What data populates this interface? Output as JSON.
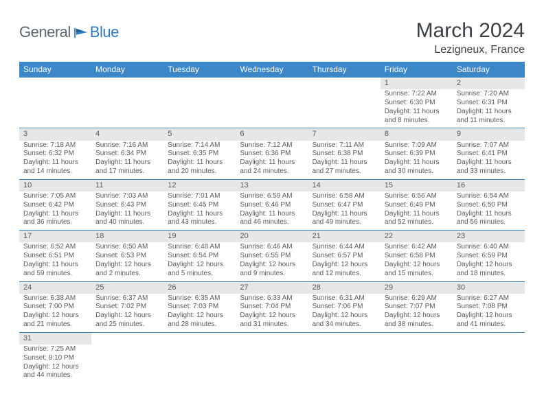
{
  "logo": {
    "general": "General",
    "blue": "Blue"
  },
  "title": "March 2024",
  "location": "Lezigneux, France",
  "colors": {
    "header_bg": "#3b87c8",
    "header_text": "#ffffff",
    "daynum_bg": "#e6e7e8",
    "body_text": "#58595b",
    "row_divider": "#3b87c8",
    "logo_gray": "#5b6670",
    "logo_blue": "#2f7ac0"
  },
  "typography": {
    "title_fontsize": 30,
    "location_fontsize": 16,
    "dayname_fontsize": 12,
    "daynum_fontsize": 11,
    "body_fontsize": 10
  },
  "daynames": [
    "Sunday",
    "Monday",
    "Tuesday",
    "Wednesday",
    "Thursday",
    "Friday",
    "Saturday"
  ],
  "days": [
    {
      "n": "",
      "sr": "",
      "ss": "",
      "dl1": "",
      "dl2": ""
    },
    {
      "n": "",
      "sr": "",
      "ss": "",
      "dl1": "",
      "dl2": ""
    },
    {
      "n": "",
      "sr": "",
      "ss": "",
      "dl1": "",
      "dl2": ""
    },
    {
      "n": "",
      "sr": "",
      "ss": "",
      "dl1": "",
      "dl2": ""
    },
    {
      "n": "",
      "sr": "",
      "ss": "",
      "dl1": "",
      "dl2": ""
    },
    {
      "n": "1",
      "sr": "Sunrise: 7:22 AM",
      "ss": "Sunset: 6:30 PM",
      "dl1": "Daylight: 11 hours",
      "dl2": "and 8 minutes."
    },
    {
      "n": "2",
      "sr": "Sunrise: 7:20 AM",
      "ss": "Sunset: 6:31 PM",
      "dl1": "Daylight: 11 hours",
      "dl2": "and 11 minutes."
    },
    {
      "n": "3",
      "sr": "Sunrise: 7:18 AM",
      "ss": "Sunset: 6:32 PM",
      "dl1": "Daylight: 11 hours",
      "dl2": "and 14 minutes."
    },
    {
      "n": "4",
      "sr": "Sunrise: 7:16 AM",
      "ss": "Sunset: 6:34 PM",
      "dl1": "Daylight: 11 hours",
      "dl2": "and 17 minutes."
    },
    {
      "n": "5",
      "sr": "Sunrise: 7:14 AM",
      "ss": "Sunset: 6:35 PM",
      "dl1": "Daylight: 11 hours",
      "dl2": "and 20 minutes."
    },
    {
      "n": "6",
      "sr": "Sunrise: 7:12 AM",
      "ss": "Sunset: 6:36 PM",
      "dl1": "Daylight: 11 hours",
      "dl2": "and 24 minutes."
    },
    {
      "n": "7",
      "sr": "Sunrise: 7:11 AM",
      "ss": "Sunset: 6:38 PM",
      "dl1": "Daylight: 11 hours",
      "dl2": "and 27 minutes."
    },
    {
      "n": "8",
      "sr": "Sunrise: 7:09 AM",
      "ss": "Sunset: 6:39 PM",
      "dl1": "Daylight: 11 hours",
      "dl2": "and 30 minutes."
    },
    {
      "n": "9",
      "sr": "Sunrise: 7:07 AM",
      "ss": "Sunset: 6:41 PM",
      "dl1": "Daylight: 11 hours",
      "dl2": "and 33 minutes."
    },
    {
      "n": "10",
      "sr": "Sunrise: 7:05 AM",
      "ss": "Sunset: 6:42 PM",
      "dl1": "Daylight: 11 hours",
      "dl2": "and 36 minutes."
    },
    {
      "n": "11",
      "sr": "Sunrise: 7:03 AM",
      "ss": "Sunset: 6:43 PM",
      "dl1": "Daylight: 11 hours",
      "dl2": "and 40 minutes."
    },
    {
      "n": "12",
      "sr": "Sunrise: 7:01 AM",
      "ss": "Sunset: 6:45 PM",
      "dl1": "Daylight: 11 hours",
      "dl2": "and 43 minutes."
    },
    {
      "n": "13",
      "sr": "Sunrise: 6:59 AM",
      "ss": "Sunset: 6:46 PM",
      "dl1": "Daylight: 11 hours",
      "dl2": "and 46 minutes."
    },
    {
      "n": "14",
      "sr": "Sunrise: 6:58 AM",
      "ss": "Sunset: 6:47 PM",
      "dl1": "Daylight: 11 hours",
      "dl2": "and 49 minutes."
    },
    {
      "n": "15",
      "sr": "Sunrise: 6:56 AM",
      "ss": "Sunset: 6:49 PM",
      "dl1": "Daylight: 11 hours",
      "dl2": "and 52 minutes."
    },
    {
      "n": "16",
      "sr": "Sunrise: 6:54 AM",
      "ss": "Sunset: 6:50 PM",
      "dl1": "Daylight: 11 hours",
      "dl2": "and 56 minutes."
    },
    {
      "n": "17",
      "sr": "Sunrise: 6:52 AM",
      "ss": "Sunset: 6:51 PM",
      "dl1": "Daylight: 11 hours",
      "dl2": "and 59 minutes."
    },
    {
      "n": "18",
      "sr": "Sunrise: 6:50 AM",
      "ss": "Sunset: 6:53 PM",
      "dl1": "Daylight: 12 hours",
      "dl2": "and 2 minutes."
    },
    {
      "n": "19",
      "sr": "Sunrise: 6:48 AM",
      "ss": "Sunset: 6:54 PM",
      "dl1": "Daylight: 12 hours",
      "dl2": "and 5 minutes."
    },
    {
      "n": "20",
      "sr": "Sunrise: 6:46 AM",
      "ss": "Sunset: 6:55 PM",
      "dl1": "Daylight: 12 hours",
      "dl2": "and 9 minutes."
    },
    {
      "n": "21",
      "sr": "Sunrise: 6:44 AM",
      "ss": "Sunset: 6:57 PM",
      "dl1": "Daylight: 12 hours",
      "dl2": "and 12 minutes."
    },
    {
      "n": "22",
      "sr": "Sunrise: 6:42 AM",
      "ss": "Sunset: 6:58 PM",
      "dl1": "Daylight: 12 hours",
      "dl2": "and 15 minutes."
    },
    {
      "n": "23",
      "sr": "Sunrise: 6:40 AM",
      "ss": "Sunset: 6:59 PM",
      "dl1": "Daylight: 12 hours",
      "dl2": "and 18 minutes."
    },
    {
      "n": "24",
      "sr": "Sunrise: 6:38 AM",
      "ss": "Sunset: 7:00 PM",
      "dl1": "Daylight: 12 hours",
      "dl2": "and 21 minutes."
    },
    {
      "n": "25",
      "sr": "Sunrise: 6:37 AM",
      "ss": "Sunset: 7:02 PM",
      "dl1": "Daylight: 12 hours",
      "dl2": "and 25 minutes."
    },
    {
      "n": "26",
      "sr": "Sunrise: 6:35 AM",
      "ss": "Sunset: 7:03 PM",
      "dl1": "Daylight: 12 hours",
      "dl2": "and 28 minutes."
    },
    {
      "n": "27",
      "sr": "Sunrise: 6:33 AM",
      "ss": "Sunset: 7:04 PM",
      "dl1": "Daylight: 12 hours",
      "dl2": "and 31 minutes."
    },
    {
      "n": "28",
      "sr": "Sunrise: 6:31 AM",
      "ss": "Sunset: 7:06 PM",
      "dl1": "Daylight: 12 hours",
      "dl2": "and 34 minutes."
    },
    {
      "n": "29",
      "sr": "Sunrise: 6:29 AM",
      "ss": "Sunset: 7:07 PM",
      "dl1": "Daylight: 12 hours",
      "dl2": "and 38 minutes."
    },
    {
      "n": "30",
      "sr": "Sunrise: 6:27 AM",
      "ss": "Sunset: 7:08 PM",
      "dl1": "Daylight: 12 hours",
      "dl2": "and 41 minutes."
    },
    {
      "n": "31",
      "sr": "Sunrise: 7:25 AM",
      "ss": "Sunset: 8:10 PM",
      "dl1": "Daylight: 12 hours",
      "dl2": "and 44 minutes."
    },
    {
      "n": "",
      "sr": "",
      "ss": "",
      "dl1": "",
      "dl2": ""
    },
    {
      "n": "",
      "sr": "",
      "ss": "",
      "dl1": "",
      "dl2": ""
    },
    {
      "n": "",
      "sr": "",
      "ss": "",
      "dl1": "",
      "dl2": ""
    },
    {
      "n": "",
      "sr": "",
      "ss": "",
      "dl1": "",
      "dl2": ""
    },
    {
      "n": "",
      "sr": "",
      "ss": "",
      "dl1": "",
      "dl2": ""
    },
    {
      "n": "",
      "sr": "",
      "ss": "",
      "dl1": "",
      "dl2": ""
    }
  ]
}
